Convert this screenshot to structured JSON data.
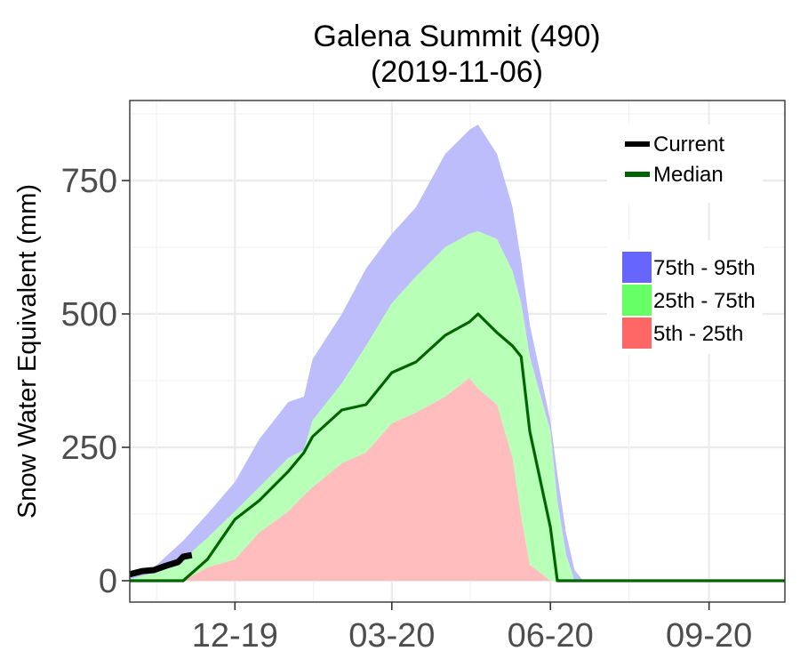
{
  "chart_data": {
    "type": "area",
    "title": "Galena Summit (490)",
    "subtitle": "(2019-11-06)",
    "xlabel": "",
    "ylabel": "Snow Water Equivalent (mm)",
    "x_range": [
      "2019-10-01",
      "2020-10-15"
    ],
    "ylim": [
      -40,
      900
    ],
    "y_ticks": [
      0,
      250,
      500,
      750
    ],
    "x_ticks": [
      {
        "date": "2019-12-01",
        "label": "12-19"
      },
      {
        "date": "2020-03-01",
        "label": "03-20"
      },
      {
        "date": "2020-06-01",
        "label": "06-20"
      },
      {
        "date": "2020-09-01",
        "label": "09-20"
      }
    ],
    "grid": true,
    "legend_placement": "top-right",
    "colors": {
      "current": "#000000",
      "median": "#006400",
      "band_75_95": "#bdbdfc",
      "band_25_75": "#b8ffb8",
      "band_5_25": "#ffbdbd",
      "legend_75_95": "#6666ff",
      "legend_25_75": "#66ff66",
      "legend_5_25": "#ff6666"
    },
    "legend": {
      "lines": [
        {
          "name": "Current",
          "color": "#000000"
        },
        {
          "name": "Median",
          "color": "#006400"
        }
      ],
      "bands": [
        {
          "name": "75th - 95th",
          "color": "#6666ff"
        },
        {
          "name": "25th - 75th",
          "color": "#66ff66"
        },
        {
          "name": "5th - 25th",
          "color": "#ff6666"
        }
      ]
    },
    "x": [
      "2019-10-01",
      "2019-10-15",
      "2019-11-01",
      "2019-11-15",
      "2019-12-01",
      "2019-12-15",
      "2020-01-01",
      "2020-01-10",
      "2020-01-15",
      "2020-02-01",
      "2020-02-15",
      "2020-03-01",
      "2020-03-15",
      "2020-04-01",
      "2020-04-15",
      "2020-04-20",
      "2020-05-01",
      "2020-05-10",
      "2020-05-15",
      "2020-05-20",
      "2020-06-01",
      "2020-06-05",
      "2020-06-10",
      "2020-06-15",
      "2020-06-20",
      "2020-07-01",
      "2020-08-01",
      "2020-09-01",
      "2020-10-01",
      "2020-10-15"
    ],
    "series": [
      {
        "name": "95th",
        "values": [
          10,
          25,
          75,
          125,
          185,
          265,
          335,
          345,
          415,
          500,
          585,
          650,
          700,
          800,
          845,
          855,
          800,
          700,
          600,
          480,
          300,
          200,
          90,
          20,
          0,
          0,
          0,
          0,
          0,
          0
        ]
      },
      {
        "name": "75th",
        "values": [
          3,
          15,
          40,
          80,
          130,
          175,
          230,
          245,
          300,
          370,
          440,
          520,
          570,
          625,
          650,
          655,
          640,
          580,
          520,
          420,
          280,
          150,
          50,
          0,
          0,
          0,
          0,
          0,
          0,
          0
        ]
      },
      {
        "name": "Median",
        "values": [
          0,
          0,
          0,
          40,
          115,
          150,
          205,
          240,
          270,
          320,
          330,
          390,
          410,
          460,
          485,
          500,
          465,
          440,
          420,
          280,
          100,
          0,
          0,
          0,
          0,
          0,
          0,
          0,
          0,
          0
        ]
      },
      {
        "name": "25th",
        "values": [
          0,
          0,
          0,
          25,
          40,
          90,
          130,
          160,
          175,
          220,
          240,
          295,
          315,
          345,
          380,
          360,
          330,
          230,
          120,
          30,
          0,
          0,
          0,
          0,
          0,
          0,
          0,
          0,
          0,
          0
        ]
      },
      {
        "name": "5th",
        "values": [
          0,
          0,
          0,
          0,
          0,
          0,
          0,
          0,
          0,
          0,
          0,
          0,
          0,
          0,
          0,
          0,
          0,
          0,
          0,
          0,
          0,
          0,
          0,
          0,
          0,
          0,
          0,
          0,
          0,
          0
        ]
      }
    ],
    "current": {
      "name": "Current",
      "x": [
        "2019-10-01",
        "2019-10-08",
        "2019-10-15",
        "2019-10-22",
        "2019-10-29",
        "2019-11-01",
        "2019-11-06"
      ],
      "values": [
        12,
        18,
        20,
        28,
        35,
        45,
        48
      ]
    }
  }
}
